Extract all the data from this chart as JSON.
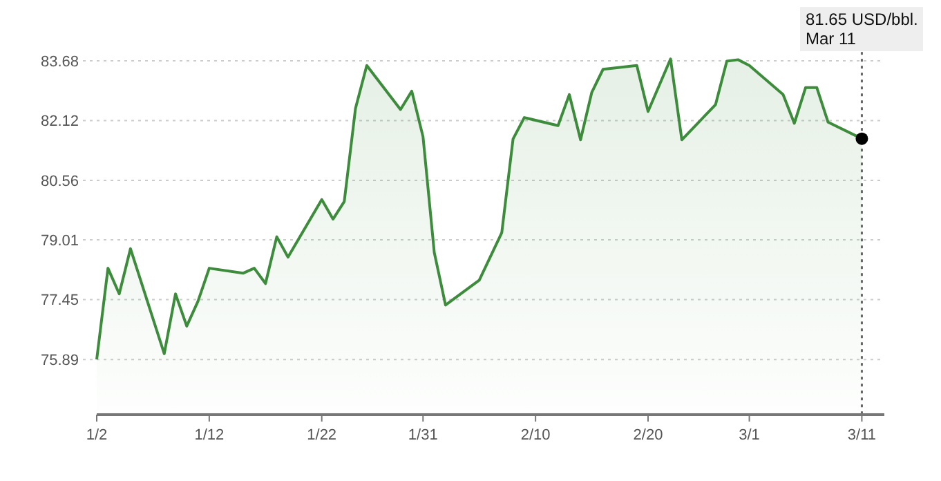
{
  "chart_data": {
    "type": "area",
    "x": [
      "--01-02",
      "--01-03",
      "--01-04",
      "--01-05",
      "--01-08",
      "--01-09",
      "--01-10",
      "--01-11",
      "--01-12",
      "--01-15",
      "--01-16",
      "--01-17",
      "--01-18",
      "--01-19",
      "--01-22",
      "--01-23",
      "--01-24",
      "--01-25",
      "--01-26",
      "--01-29",
      "--01-30",
      "--01-31",
      "--02-01",
      "--02-02",
      "--02-05",
      "--02-07",
      "--02-08",
      "--02-09",
      "--02-12",
      "--02-13",
      "--02-14",
      "--02-15",
      "--02-16",
      "--02-19",
      "--02-20",
      "--02-22",
      "--02-23",
      "--02-26",
      "--02-27",
      "--02-28",
      "--03-01",
      "--03-04",
      "--03-05",
      "--03-06",
      "--03-07",
      "--03-08",
      "--03-11"
    ],
    "series": [
      {
        "color": "#3c8c3c",
        "values": [
          75.89,
          78.27,
          77.6,
          78.78,
          76.04,
          77.6,
          76.76,
          77.41,
          78.27,
          78.14,
          78.27,
          77.87,
          79.09,
          78.56,
          80.06,
          79.55,
          80.01,
          82.44,
          83.56,
          82.41,
          82.89,
          81.7,
          78.68,
          77.31,
          77.96,
          79.2,
          81.64,
          82.2,
          81.99,
          82.8,
          81.62,
          82.86,
          83.46,
          83.56,
          82.36,
          83.73,
          81.62,
          82.54,
          83.67,
          83.71,
          83.56,
          82.8,
          82.05,
          82.98,
          82.98,
          82.08,
          81.65
        ]
      },
      {
        "type": "scatter",
        "x": [
          "--03-11"
        ],
        "color": "#000000",
        "marker": "circle",
        "values": [
          81.65
        ]
      }
    ],
    "xlim": [
      "--01-02",
      "--03-13"
    ],
    "xticks": [
      {
        "value": "--01-02",
        "label": "1/2"
      },
      {
        "value": "--01-12",
        "label": "1/12"
      },
      {
        "value": "--01-22",
        "label": "1/22"
      },
      {
        "value": "--01-31",
        "label": "1/31"
      },
      {
        "value": "--02-10",
        "label": "2/10"
      },
      {
        "value": "--02-20",
        "label": "2/20"
      },
      {
        "value": "--03-01",
        "label": "3/1"
      },
      {
        "value": "--03-11",
        "label": "3/11"
      }
    ],
    "ylim": [
      74.45,
      84.2
    ],
    "yticks": [
      75.89,
      77.45,
      79.01,
      80.56,
      82.12,
      83.68
    ],
    "grid": "y",
    "ref_lines": [
      {
        "axis": "x",
        "value": "--03-11",
        "line_style": "dotted",
        "color": "#666666"
      }
    ],
    "annotations": [
      "81.65 USD/bbl.",
      "Mar 11"
    ]
  }
}
